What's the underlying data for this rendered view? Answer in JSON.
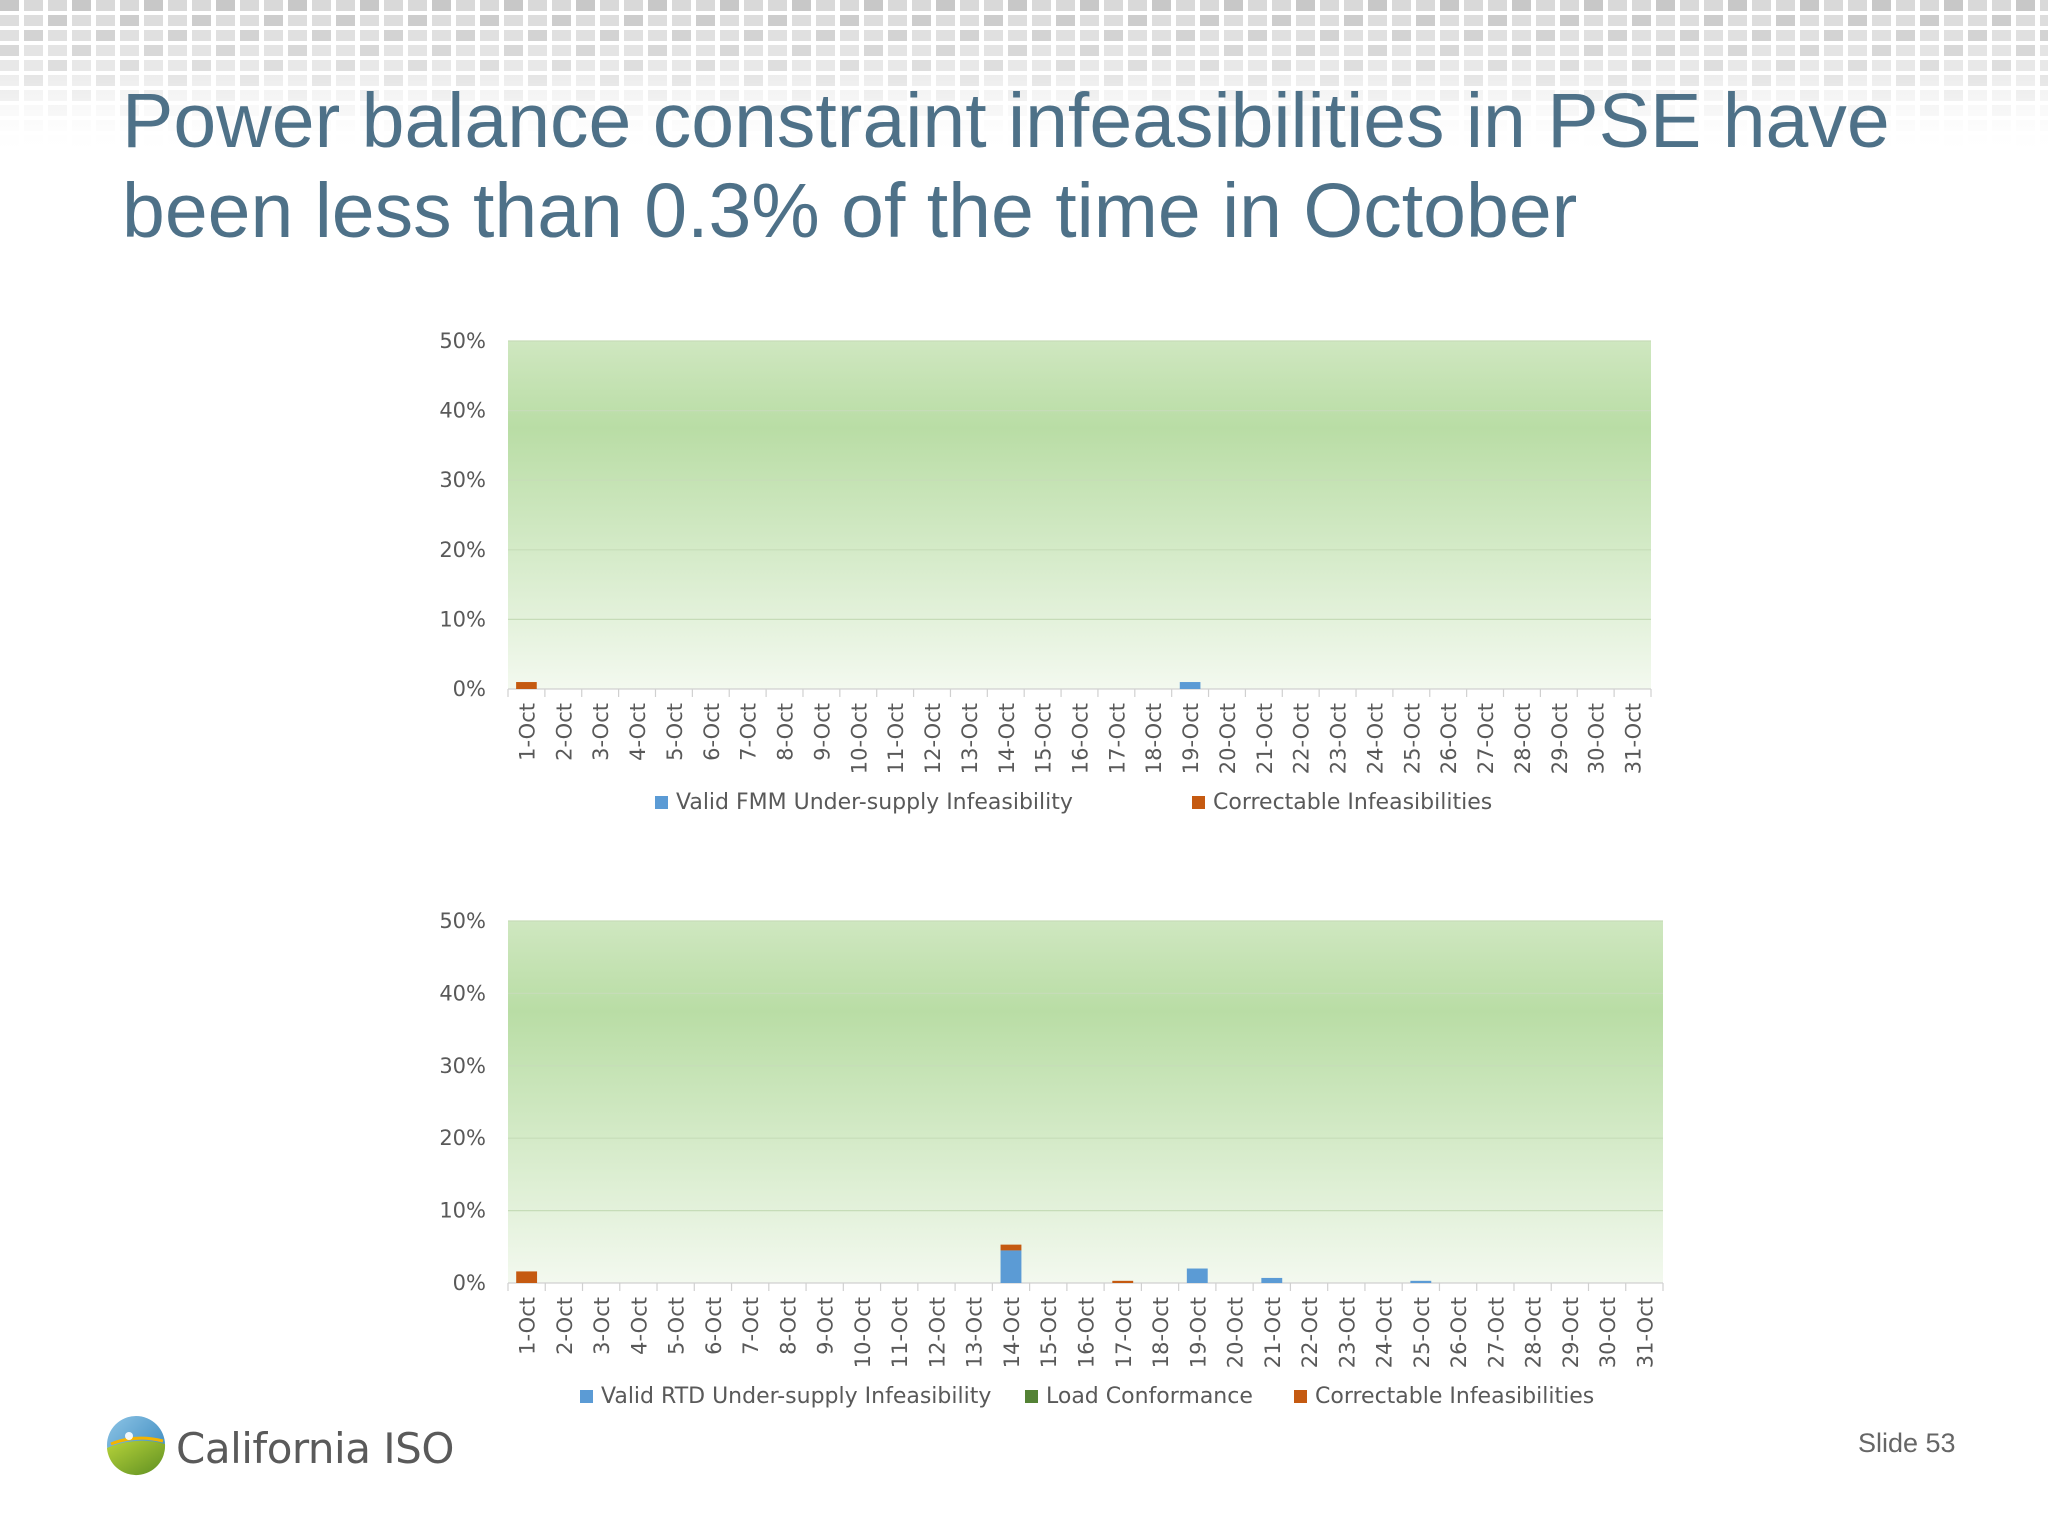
{
  "slide": {
    "title_line1": "Power balance constraint infeasibilities in  PSE have",
    "title_line2": "been less than 0.3% of the time in October",
    "logo_text": "California ISO",
    "logo_icon": "california-iso-logo-icon",
    "slide_number": "Slide 53"
  },
  "colors": {
    "title": "#4e7188",
    "blue_series": "#5b9bd5",
    "green_series": "#548235",
    "orange_series": "#c55a11",
    "plot_gradient_top": "#cfe7c0",
    "plot_gradient_mid": "#b9dda5",
    "plot_gradient_bottom": "#f3f9ef"
  },
  "chart_data": [
    {
      "type": "bar",
      "stacked": true,
      "title": "",
      "xlabel": "",
      "ylabel": "",
      "ylim": [
        0,
        50
      ],
      "y_ticks": [
        "0%",
        "10%",
        "20%",
        "30%",
        "40%",
        "50%"
      ],
      "grid": true,
      "legend_position": "bottom",
      "categories": [
        "1-Oct",
        "2-Oct",
        "3-Oct",
        "4-Oct",
        "5-Oct",
        "6-Oct",
        "7-Oct",
        "8-Oct",
        "9-Oct",
        "10-Oct",
        "11-Oct",
        "12-Oct",
        "13-Oct",
        "14-Oct",
        "15-Oct",
        "16-Oct",
        "17-Oct",
        "18-Oct",
        "19-Oct",
        "20-Oct",
        "21-Oct",
        "22-Oct",
        "23-Oct",
        "24-Oct",
        "25-Oct",
        "26-Oct",
        "27-Oct",
        "28-Oct",
        "29-Oct",
        "30-Oct",
        "31-Oct"
      ],
      "series": [
        {
          "name": "Valid  FMM Under-supply Infeasibility",
          "color": "#5b9bd5",
          "values": [
            0,
            0,
            0,
            0,
            0,
            0,
            0,
            0,
            0,
            0,
            0,
            0,
            0,
            0,
            0,
            0,
            0,
            0,
            1.0,
            0,
            0,
            0,
            0,
            0,
            0,
            0,
            0,
            0,
            0,
            0,
            0
          ]
        },
        {
          "name": "Correctable Infeasibilities",
          "color": "#c55a11",
          "values": [
            1.0,
            0,
            0,
            0,
            0,
            0,
            0,
            0,
            0,
            0,
            0,
            0,
            0,
            0,
            0,
            0,
            0,
            0,
            0,
            0,
            0,
            0,
            0,
            0,
            0,
            0,
            0,
            0,
            0,
            0,
            0
          ]
        }
      ]
    },
    {
      "type": "bar",
      "stacked": true,
      "title": "",
      "xlabel": "",
      "ylabel": "",
      "ylim": [
        0,
        50
      ],
      "y_ticks": [
        "0%",
        "10%",
        "20%",
        "30%",
        "40%",
        "50%"
      ],
      "grid": true,
      "legend_position": "bottom",
      "categories": [
        "1-Oct",
        "2-Oct",
        "3-Oct",
        "4-Oct",
        "5-Oct",
        "6-Oct",
        "7-Oct",
        "8-Oct",
        "9-Oct",
        "10-Oct",
        "11-Oct",
        "12-Oct",
        "13-Oct",
        "14-Oct",
        "15-Oct",
        "16-Oct",
        "17-Oct",
        "18-Oct",
        "19-Oct",
        "20-Oct",
        "21-Oct",
        "22-Oct",
        "23-Oct",
        "24-Oct",
        "25-Oct",
        "26-Oct",
        "27-Oct",
        "28-Oct",
        "29-Oct",
        "30-Oct",
        "31-Oct"
      ],
      "series": [
        {
          "name": "Valid RTD Under-supply Infeasibility",
          "color": "#5b9bd5",
          "values": [
            0,
            0,
            0,
            0,
            0,
            0,
            0,
            0,
            0,
            0,
            0,
            0,
            0,
            4.5,
            0,
            0,
            0,
            0,
            2.0,
            0,
            0.7,
            0,
            0,
            0,
            0.3,
            0,
            0,
            0,
            0,
            0,
            0
          ]
        },
        {
          "name": "Load Conformance",
          "color": "#548235",
          "values": [
            0,
            0,
            0,
            0,
            0,
            0,
            0,
            0,
            0,
            0,
            0,
            0,
            0,
            0,
            0,
            0,
            0,
            0,
            0,
            0,
            0,
            0,
            0,
            0,
            0,
            0,
            0,
            0,
            0,
            0,
            0
          ]
        },
        {
          "name": "Correctable Infeasibilities",
          "color": "#c55a11",
          "values": [
            1.6,
            0,
            0,
            0,
            0,
            0,
            0,
            0,
            0,
            0,
            0,
            0,
            0,
            0.8,
            0,
            0,
            0.3,
            0,
            0,
            0,
            0,
            0,
            0,
            0,
            0,
            0,
            0,
            0,
            0,
            0,
            0
          ]
        }
      ]
    }
  ]
}
